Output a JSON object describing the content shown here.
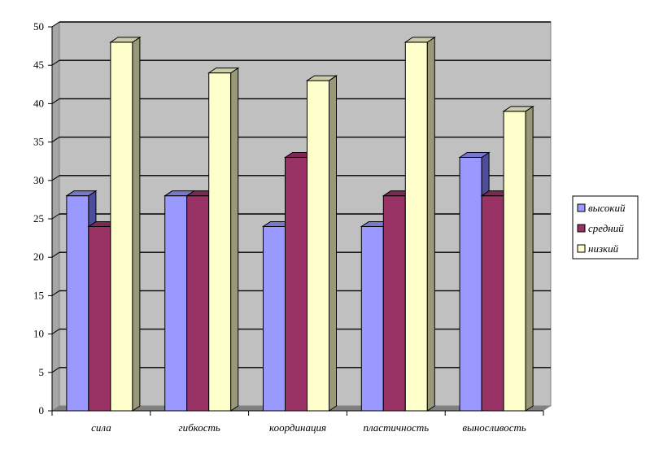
{
  "chart_data": {
    "type": "bar",
    "categories": [
      "сила",
      "гибкость",
      "координация",
      "пластичность",
      "выносливость"
    ],
    "series": [
      {
        "name": "высокий",
        "values": [
          28,
          28,
          24,
          24,
          33
        ]
      },
      {
        "name": "средний",
        "values": [
          24,
          28,
          33,
          28,
          28
        ]
      },
      {
        "name": "низкий",
        "values": [
          48,
          44,
          43,
          48,
          39
        ]
      }
    ],
    "ylim": [
      0,
      50
    ],
    "yticks": [
      0,
      5,
      10,
      15,
      20,
      25,
      30,
      35,
      40,
      45,
      50
    ],
    "grid": true,
    "legend_position": "right",
    "colors": {
      "series": [
        "#9999ff",
        "#993366",
        "#ffffcc"
      ],
      "series_side": [
        "#4d4d99",
        "#5c1f3d",
        "#99997a"
      ],
      "series_top": [
        "#7777cc",
        "#7a2952",
        "#ccccaa"
      ],
      "wall": "#c0c0c0",
      "floor": "#808080"
    }
  }
}
